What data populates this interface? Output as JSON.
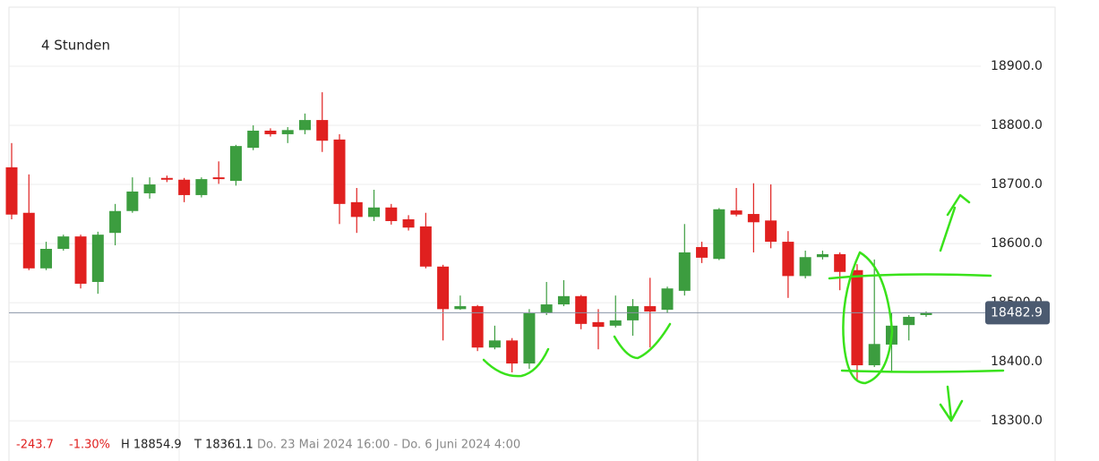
{
  "chart_data": {
    "type": "candlestick",
    "title": "4 Stunden",
    "categories": [
      null,
      null,
      null,
      null,
      null,
      null,
      null,
      null,
      null,
      null,
      null,
      null,
      null,
      null,
      null,
      null,
      null,
      null,
      null,
      null,
      null,
      null,
      null,
      null,
      null,
      null,
      null,
      null,
      null,
      null,
      null,
      null,
      null,
      null,
      null,
      null,
      null,
      null,
      null,
      null,
      null,
      null,
      null,
      null,
      null,
      null,
      null,
      null,
      null,
      null,
      null,
      null,
      null,
      null
    ],
    "open": [
      18729,
      18652,
      18558,
      18591,
      18612,
      18535,
      18618,
      18655,
      18685,
      18711,
      18708,
      18682,
      18712,
      18706,
      18762,
      18791,
      18785,
      18792,
      18809,
      18776,
      18670,
      18645,
      18661,
      18641,
      18629,
      18561,
      18489,
      18494,
      18424,
      18436,
      18397,
      18482,
      18497,
      18511,
      18467,
      18461,
      18470,
      18494,
      18488,
      18520,
      18594,
      18574,
      18656,
      18650,
      18639,
      18603,
      18545,
      18577,
      18582,
      18555,
      18394,
      18429,
      18462,
      18479
    ],
    "high": [
      18770,
      18717,
      18603,
      18615,
      18615,
      18620,
      18667,
      18712,
      18712,
      18715,
      18711,
      18712,
      18739,
      18767,
      18800,
      18795,
      18797,
      18820,
      18856,
      18785,
      18694,
      18691,
      18667,
      18648,
      18652,
      18564,
      18512,
      18496,
      18461,
      18440,
      18489,
      18535,
      18538,
      18513,
      18489,
      18512,
      18506,
      18542,
      18527,
      18633,
      18603,
      18660,
      18694,
      18702,
      18700,
      18621,
      18588,
      18588,
      18585,
      18565,
      18573,
      18482,
      18479,
      18485
    ],
    "low": [
      18641,
      18555,
      18555,
      18588,
      18524,
      18515,
      18597,
      18652,
      18676,
      18704,
      18670,
      18678,
      18701,
      18698,
      18758,
      18781,
      18770,
      18785,
      18755,
      18633,
      18618,
      18638,
      18632,
      18622,
      18558,
      18436,
      18488,
      18418,
      18421,
      18382,
      18388,
      18479,
      18494,
      18455,
      18421,
      18458,
      18444,
      18424,
      18482,
      18512,
      18567,
      18572,
      18646,
      18585,
      18592,
      18508,
      18541,
      18573,
      18521,
      18367,
      18391,
      18382,
      18436,
      18476
    ],
    "close": [
      18649,
      18558,
      18591,
      18612,
      18532,
      18615,
      18655,
      18688,
      18700,
      18708,
      18682,
      18709,
      18709,
      18765,
      18791,
      18785,
      18792,
      18809,
      18774,
      18667,
      18645,
      18661,
      18638,
      18627,
      18561,
      18489,
      18494,
      18424,
      18436,
      18397,
      18482,
      18497,
      18511,
      18464,
      18459,
      18470,
      18494,
      18485,
      18524,
      18585,
      18576,
      18658,
      18649,
      18636,
      18603,
      18545,
      18577,
      18582,
      18552,
      18394,
      18430,
      18461,
      18476,
      18483
    ],
    "up_color": "#3c9d3f",
    "down_color": "#e0201f",
    "ylim": [
      18232,
      19000
    ],
    "yticks": [
      {
        "value": 18300,
        "label": "18300.0"
      },
      {
        "value": 18400,
        "label": "18400.0"
      },
      {
        "value": 18500,
        "label": "18500.0"
      },
      {
        "value": 18600,
        "label": "18600.0"
      },
      {
        "value": 18700,
        "label": "18700.0"
      },
      {
        "value": 18800,
        "label": "18800.0"
      },
      {
        "value": 18900,
        "label": "18900.0"
      }
    ],
    "grid": true,
    "last_price": 18482.9,
    "info": {
      "change": "-243.7",
      "change_pct": "-1.30%",
      "high": "H 18854.9",
      "low": "T 18361.1",
      "range": "Do. 23 Mai 2024 16:00 - Do. 6 Juni 2024 4:00"
    }
  }
}
